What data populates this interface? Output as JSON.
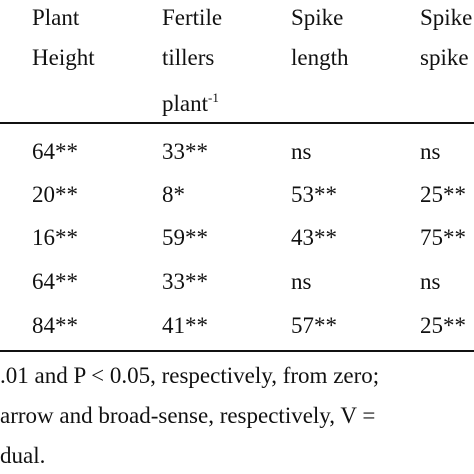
{
  "table": {
    "header": [
      {
        "lines": [
          "Plant",
          "Height"
        ]
      },
      {
        "lines": [
          "Fertile",
          "tillers",
          "plant"
        ],
        "superscript": "-1"
      },
      {
        "lines": [
          "Spike",
          "length"
        ]
      },
      {
        "lines": [
          "Spike",
          "spike"
        ]
      }
    ],
    "rows": [
      [
        "64**",
        "33**",
        "ns",
        "ns"
      ],
      [
        "20**",
        "8*",
        "53**",
        "25**"
      ],
      [
        "16**",
        "59**",
        "43**",
        "75**"
      ],
      [
        "64**",
        "33**",
        "ns",
        "ns"
      ],
      [
        "84**",
        "41**",
        "57**",
        "25**"
      ]
    ]
  },
  "footnote": [
    ".01 and P < 0.05, respectively, from zero;",
    "arrow and broad-sense, respectively, V =",
    "dual."
  ]
}
